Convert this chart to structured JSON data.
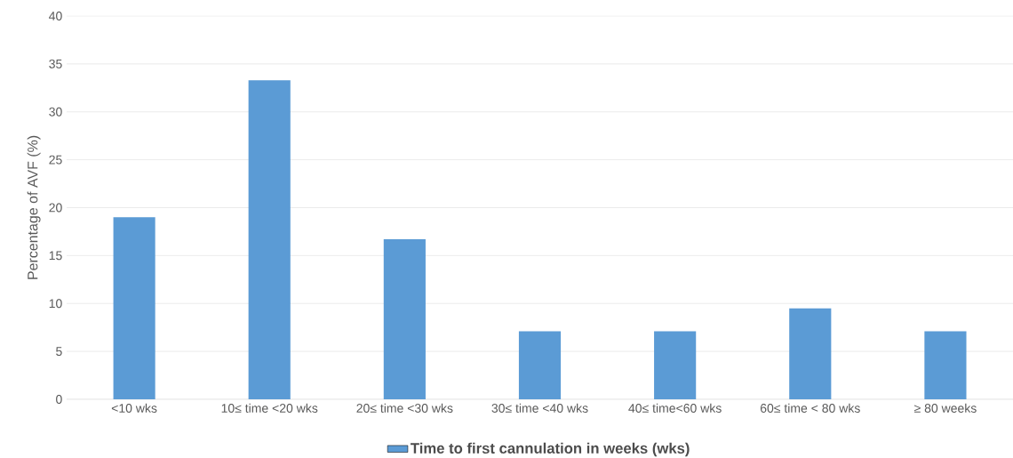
{
  "chart_data": {
    "type": "bar",
    "ylabel": "Percentage of AVF (%)",
    "categories": [
      "<10 wks",
      "10≤ time  <20 wks",
      "20≤ time  <30 wks",
      "30≤ time  <40 wks",
      "40≤ time<60 wks",
      "60≤ time  < 80 wks",
      "≥ 80 weeks"
    ],
    "series": [
      {
        "name": "Time to first cannulation in weeks (wks)",
        "color": "#5b9bd5",
        "values": [
          19.0,
          33.3,
          16.7,
          7.1,
          7.1,
          9.5,
          7.1
        ]
      }
    ],
    "ylim": [
      0,
      40
    ],
    "yticks": [
      0,
      5,
      10,
      15,
      20,
      25,
      30,
      35,
      40
    ],
    "grid": "y",
    "legend": "bottom"
  }
}
